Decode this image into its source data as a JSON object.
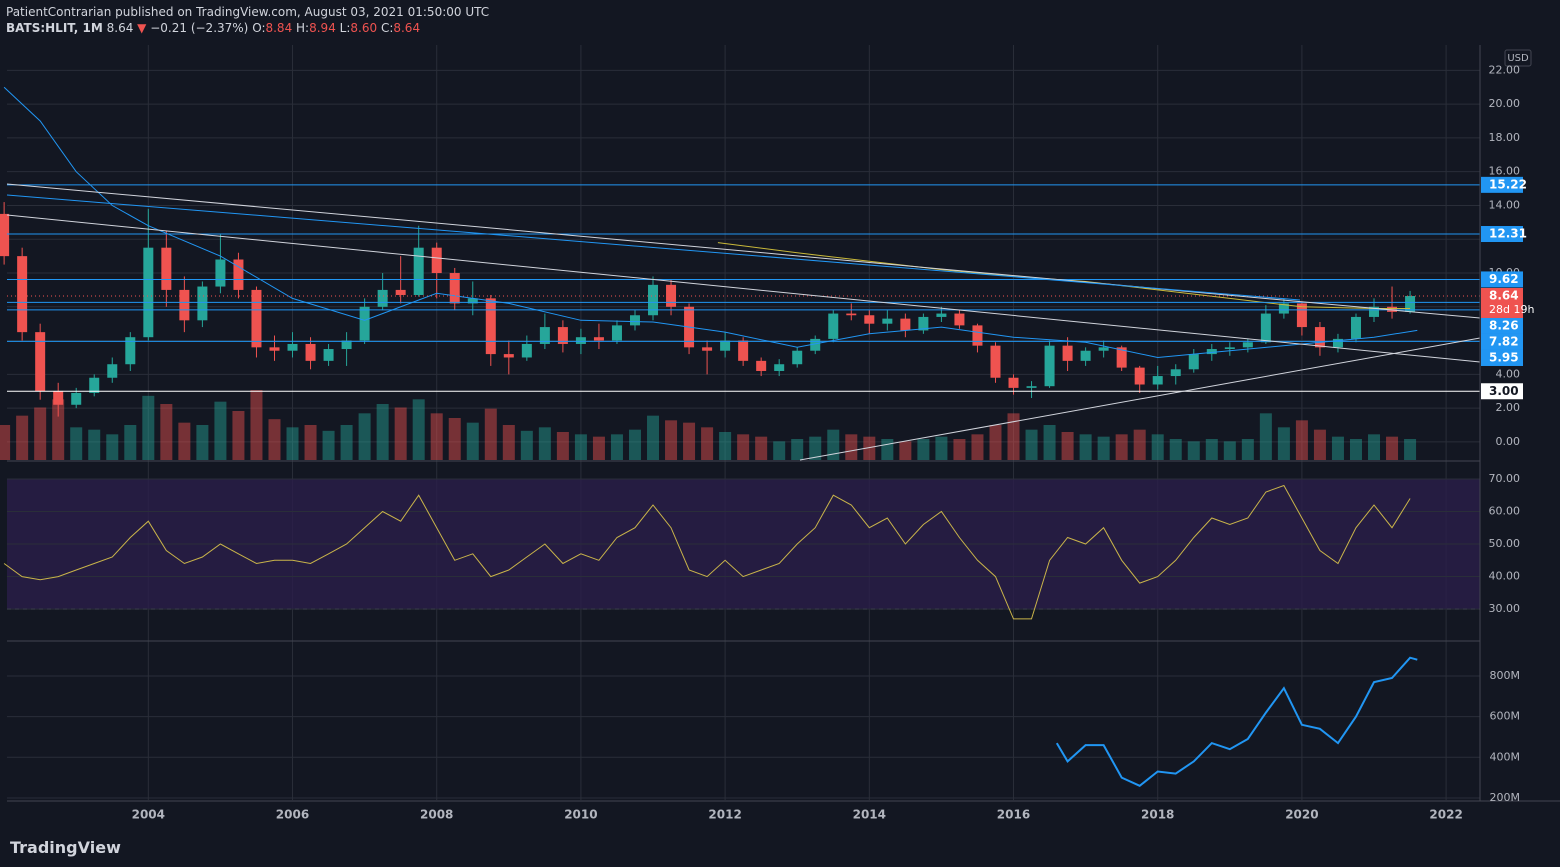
{
  "header": {
    "publisher_line": "PatientContrarian published on TradingView.com, August 03, 2021 01:50:00 UTC",
    "symbol": "BATS:HLIT, 1M",
    "last": "8.64",
    "arrow": "▼",
    "change": "−0.21 (−2.37%)",
    "open_label": "O:",
    "open": "8.84",
    "high_label": "H:",
    "high": "8.94",
    "low_label": "L:",
    "low": "8.60",
    "close_label": "C:",
    "close": "8.64"
  },
  "currency": "USD",
  "brand": "TradingView",
  "countdown": "28d 19h",
  "chart_data": [
    {
      "type": "candlestick",
      "up_color": "#26a69a",
      "down_color": "#ef5350",
      "xlim": [
        2002.04,
        2022.47
      ],
      "ylim": [
        -1.07,
        23.5
      ],
      "yticks": [
        {
          "value": 0,
          "label": "0.00"
        },
        {
          "value": 2,
          "label": "2.00"
        },
        {
          "value": 4,
          "label": "4.00"
        },
        {
          "value": 6,
          "label": "6.00"
        },
        {
          "value": 8,
          "label": "8.00"
        },
        {
          "value": 10,
          "label": "10.00"
        },
        {
          "value": 12,
          "label": "12.00"
        },
        {
          "value": 14,
          "label": "14.00"
        },
        {
          "value": 16,
          "label": "16.00"
        },
        {
          "value": 18,
          "label": "18.00"
        },
        {
          "value": 20,
          "label": "20.00"
        },
        {
          "value": 22,
          "label": "22.00"
        }
      ],
      "x": [
        2002,
        2002.25,
        2002.5,
        2002.75,
        2003,
        2003.25,
        2003.5,
        2003.75,
        2004,
        2004.25,
        2004.5,
        2004.75,
        2005,
        2005.25,
        2005.5,
        2005.75,
        2006,
        2006.25,
        2006.5,
        2006.75,
        2007,
        2007.25,
        2007.5,
        2007.75,
        2008,
        2008.25,
        2008.5,
        2008.75,
        2009,
        2009.25,
        2009.5,
        2009.75,
        2010,
        2010.25,
        2010.5,
        2010.75,
        2011,
        2011.25,
        2011.5,
        2011.75,
        2012,
        2012.25,
        2012.5,
        2012.75,
        2013,
        2013.25,
        2013.5,
        2013.75,
        2014,
        2014.25,
        2014.5,
        2014.75,
        2015,
        2015.25,
        2015.5,
        2015.75,
        2016,
        2016.25,
        2016.5,
        2016.75,
        2017,
        2017.25,
        2017.5,
        2017.75,
        2018,
        2018.25,
        2018.5,
        2018.75,
        2019,
        2019.25,
        2019.5,
        2019.75,
        2020,
        2020.25,
        2020.5,
        2020.75,
        2021,
        2021.25,
        2021.5
      ],
      "open": [
        13.5,
        11,
        6.5,
        3,
        2.2,
        2.9,
        3.8,
        4.6,
        6.2,
        11.5,
        9,
        7.2,
        9.2,
        10.8,
        9,
        5.6,
        5.4,
        5.8,
        4.8,
        5.5,
        6,
        8,
        9,
        8.7,
        11.5,
        10,
        8.2,
        8.5,
        5.2,
        5,
        5.8,
        6.8,
        5.8,
        6.2,
        6,
        6.9,
        7.5,
        9.3,
        8,
        5.6,
        5.4,
        6,
        4.8,
        4.2,
        4.6,
        5.4,
        6.1,
        7.6,
        7.5,
        7,
        7.3,
        6.6,
        7.4,
        7.6,
        6.9,
        5.7,
        3.8,
        3.2,
        3.3,
        5.7,
        4.8,
        5.4,
        5.6,
        4.4,
        3.4,
        3.9,
        4.3,
        5.2,
        5.5,
        5.6,
        5.9,
        7.6,
        8.2,
        6.8,
        5.6,
        6.1,
        7.4,
        8,
        7.7
      ],
      "high": [
        14.2,
        11.5,
        7,
        3.5,
        3.2,
        4,
        5,
        6.5,
        13.8,
        12.5,
        9.8,
        9.5,
        12.3,
        11.2,
        9.2,
        6.3,
        6.5,
        6.2,
        5.8,
        6.5,
        8.5,
        10,
        11,
        12.8,
        11.8,
        10.3,
        9.5,
        8.7,
        6,
        6.3,
        7.6,
        7.2,
        6.7,
        7,
        7.2,
        7.8,
        9.8,
        9.6,
        8.2,
        6,
        6.5,
        6.2,
        5,
        4.9,
        5.6,
        6.3,
        7.8,
        8.2,
        7.8,
        7.8,
        7.6,
        7.6,
        8,
        7.8,
        7,
        5.9,
        4,
        3.6,
        6,
        6.2,
        5.6,
        6,
        5.7,
        4.5,
        4.5,
        4.6,
        5.5,
        5.8,
        5.9,
        6.1,
        8.1,
        8.5,
        8.3,
        7.1,
        6.4,
        7.6,
        8.5,
        9.2,
        8.94
      ],
      "low": [
        10.5,
        6,
        2.5,
        1.5,
        2,
        2.7,
        3.5,
        4.2,
        6,
        8,
        6.5,
        6.8,
        8.8,
        8.5,
        5,
        4.8,
        5,
        4.3,
        4.5,
        4.5,
        5.8,
        7.8,
        8.2,
        8.6,
        8.5,
        7.8,
        7.5,
        4.5,
        4,
        4.8,
        5.5,
        5.3,
        5.2,
        5.5,
        5.8,
        6.6,
        7.2,
        7.5,
        5.2,
        4,
        5,
        4.5,
        3.9,
        3.9,
        4.4,
        5.2,
        5.9,
        7.2,
        6.4,
        6.6,
        6.2,
        6.4,
        7.1,
        6.7,
        5.3,
        3.5,
        2.8,
        2.6,
        3.2,
        4.2,
        4.5,
        5,
        4.2,
        2.9,
        3.1,
        3.4,
        4.1,
        4.8,
        5.1,
        5.3,
        5.8,
        7.3,
        6.3,
        5.1,
        5.3,
        5.9,
        7.1,
        7.3,
        7.6
      ],
      "close": [
        11,
        6.5,
        3,
        2.2,
        2.9,
        3.8,
        4.6,
        6.2,
        11.5,
        9,
        7.2,
        9.2,
        10.8,
        9,
        5.6,
        5.4,
        5.8,
        4.8,
        5.5,
        6,
        8,
        9,
        8.7,
        11.5,
        10,
        8.2,
        8.5,
        5.2,
        5,
        5.8,
        6.8,
        5.8,
        6.2,
        6,
        6.9,
        7.5,
        9.3,
        8,
        5.6,
        5.4,
        6,
        4.8,
        4.2,
        4.6,
        5.4,
        6.1,
        7.6,
        7.5,
        7,
        7.3,
        6.6,
        7.4,
        7.6,
        6.9,
        5.7,
        3.8,
        3.2,
        3.3,
        5.7,
        4.8,
        5.4,
        5.6,
        4.4,
        3.4,
        3.9,
        4.3,
        5.2,
        5.5,
        5.6,
        5.9,
        7.6,
        8.2,
        6.8,
        5.6,
        6.1,
        7.4,
        8,
        7.7,
        8.64
      ],
      "volume": [
        30,
        38,
        45,
        52,
        28,
        26,
        22,
        30,
        55,
        48,
        32,
        30,
        50,
        42,
        60,
        35,
        28,
        30,
        25,
        30,
        40,
        48,
        45,
        52,
        40,
        36,
        32,
        44,
        30,
        25,
        28,
        24,
        22,
        20,
        22,
        26,
        38,
        34,
        32,
        28,
        24,
        22,
        20,
        16,
        18,
        20,
        26,
        22,
        20,
        18,
        16,
        18,
        20,
        18,
        22,
        30,
        40,
        26,
        30,
        24,
        22,
        20,
        22,
        26,
        22,
        18,
        16,
        18,
        16,
        18,
        40,
        28,
        34,
        26,
        20,
        18,
        22,
        20,
        18
      ],
      "overlays": [
        {
          "color": "#2196f3",
          "x": [
            2002,
            2002.5,
            2003,
            2003.5,
            2004,
            2005,
            2006,
            2007,
            2008,
            2009,
            2010,
            2011,
            2012,
            2013,
            2014,
            2015,
            2016,
            2017,
            2018,
            2019,
            2020,
            2021,
            2021.6
          ],
          "values": [
            21,
            19,
            16,
            14,
            12.8,
            11,
            8.5,
            7.2,
            8.8,
            8.2,
            7.2,
            7.1,
            6.5,
            5.6,
            6.4,
            6.8,
            6.2,
            5.9,
            5,
            5.4,
            5.8,
            6.2,
            6.6
          ]
        },
        {
          "color": "#c9b93a",
          "x": [
            2011.9,
            2013,
            2014,
            2015,
            2016,
            2017,
            2018,
            2019,
            2020,
            2021,
            2021.5
          ],
          "values": [
            11.8,
            11.2,
            10.7,
            10.2,
            9.8,
            9.5,
            9,
            8.5,
            8,
            7.9,
            7.9
          ]
        }
      ],
      "levels": [
        {
          "value": 15.22,
          "color": "#2196f3"
        },
        {
          "value": 12.31,
          "color": "#2196f3"
        },
        {
          "value": 9.62,
          "color": "#2196f3"
        },
        {
          "value": 8.64,
          "color": "#ef5350"
        },
        {
          "value": 8.26,
          "color": "#2196f3"
        },
        {
          "value": 7.82,
          "color": "#2196f3"
        },
        {
          "value": 5.95,
          "color": "#2196f3"
        },
        {
          "value": {
            "value": 3,
            "label": "3.00"
          },
          "color": "#ffffff"
        }
      ]
    },
    {
      "type": "line",
      "color": "#c9b44a",
      "band_color": "#2a1e4a",
      "xlim": [
        2002.04,
        2022.47
      ],
      "ylim": [
        20.5,
        74.9
      ],
      "yticks": [
        {
          "value": 30,
          "label": "30.00"
        },
        {
          "value": 40,
          "label": "40.00"
        },
        {
          "value": 50,
          "label": "50.00"
        },
        {
          "value": 60,
          "label": "60.00"
        },
        {
          "value": 70,
          "label": "70.00"
        }
      ],
      "x": [
        2002,
        2002.25,
        2002.5,
        2002.75,
        2003,
        2003.25,
        2003.5,
        2003.75,
        2004,
        2004.25,
        2004.5,
        2004.75,
        2005,
        2005.25,
        2005.5,
        2005.75,
        2006,
        2006.25,
        2006.5,
        2006.75,
        2007,
        2007.25,
        2007.5,
        2007.75,
        2008,
        2008.25,
        2008.5,
        2008.75,
        2009,
        2009.25,
        2009.5,
        2009.75,
        2010,
        2010.25,
        2010.5,
        2010.75,
        2011,
        2011.25,
        2011.5,
        2011.75,
        2012,
        2012.25,
        2012.5,
        2012.75,
        2013,
        2013.25,
        2013.5,
        2013.75,
        2014,
        2014.25,
        2014.5,
        2014.75,
        2015,
        2015.25,
        2015.5,
        2015.75,
        2016,
        2016.25,
        2016.5,
        2016.75,
        2017,
        2017.25,
        2017.5,
        2017.75,
        2018,
        2018.25,
        2018.5,
        2018.75,
        2019,
        2019.25,
        2019.5,
        2019.75,
        2020,
        2020.25,
        2020.5,
        2020.75,
        2021,
        2021.25,
        2021.5
      ],
      "values": [
        44,
        40,
        39,
        40,
        42,
        44,
        46,
        52,
        57,
        48,
        44,
        46,
        50,
        47,
        44,
        45,
        45,
        44,
        47,
        50,
        55,
        60,
        57,
        65,
        55,
        45,
        47,
        40,
        42,
        46,
        50,
        44,
        47,
        45,
        52,
        55,
        62,
        55,
        42,
        40,
        45,
        40,
        42,
        44,
        50,
        55,
        65,
        62,
        55,
        58,
        50,
        56,
        60,
        52,
        45,
        40,
        27,
        27,
        45,
        52,
        50,
        55,
        45,
        38,
        40,
        45,
        52,
        58,
        56,
        58,
        66,
        68,
        58,
        48,
        44,
        55,
        62,
        55,
        64
      ]
    },
    {
      "type": "line",
      "color": "#2196f3",
      "xlim": [
        2002.04,
        2022.47
      ],
      "ylim": [
        190000000,
        967000000
      ],
      "yticks": [
        {
          "value": 200000000,
          "label": "200M"
        },
        {
          "value": 400000000,
          "label": "400M"
        },
        {
          "value": 600000000,
          "label": "600M"
        },
        {
          "value": 800000000,
          "label": "800M"
        }
      ],
      "xticks": [
        2004,
        2006,
        2008,
        2010,
        2012,
        2014,
        2016,
        2018,
        2020,
        2022
      ],
      "x": [
        2016.6,
        2016.75,
        2017,
        2017.25,
        2017.5,
        2017.75,
        2018,
        2018.25,
        2018.5,
        2018.75,
        2019,
        2019.25,
        2019.5,
        2019.75,
        2020,
        2020.25,
        2020.5,
        2020.75,
        2021,
        2021.25,
        2021.5,
        2021.6
      ],
      "values": [
        470000000,
        380000000,
        460000000,
        460000000,
        300000000,
        260000000,
        330000000,
        320000000,
        380000000,
        470000000,
        440000000,
        490000000,
        620000000,
        740000000,
        560000000,
        540000000,
        470000000,
        600000000,
        770000000,
        790000000,
        890000000,
        880000000
      ]
    }
  ]
}
